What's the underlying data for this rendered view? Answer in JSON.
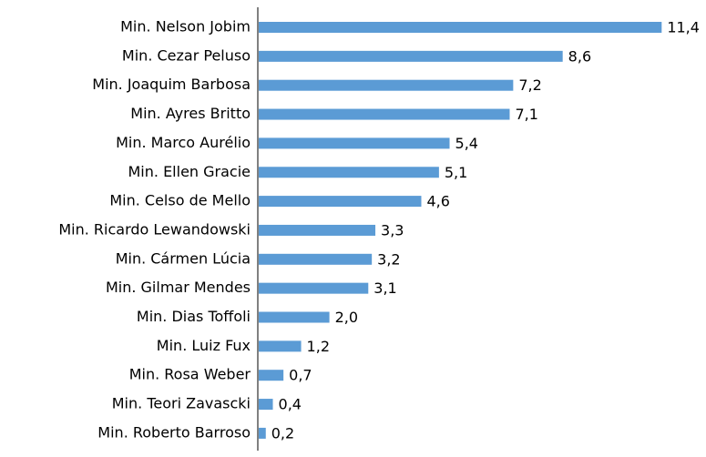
{
  "chart_data": {
    "type": "bar",
    "orientation": "horizontal",
    "categories": [
      "Min. Nelson Jobim",
      "Min. Cezar Peluso",
      "Min. Joaquim Barbosa",
      "Min. Ayres Britto",
      "Min. Marco Aurélio",
      "Min. Ellen Gracie",
      "Min. Celso de Mello",
      "Min. Ricardo Lewandowski",
      "Min. Cármen Lúcia",
      "Min. Gilmar Mendes",
      "Min. Dias Toffoli",
      "Min. Luiz Fux",
      "Min. Rosa Weber",
      "Min. Teori Zavascki",
      "Min. Roberto Barroso"
    ],
    "values": [
      11.4,
      8.6,
      7.2,
      7.1,
      5.4,
      5.1,
      4.6,
      3.3,
      3.2,
      3.1,
      2.0,
      1.2,
      0.7,
      0.4,
      0.2
    ],
    "value_labels": [
      "11,4",
      "8,6",
      "7,2",
      "7,1",
      "5,4",
      "5,1",
      "4,6",
      "3,3",
      "3,2",
      "3,1",
      "2,0",
      "1,2",
      "0,7",
      "0,4",
      "0,2"
    ],
    "color": "#5b9bd5"
  }
}
